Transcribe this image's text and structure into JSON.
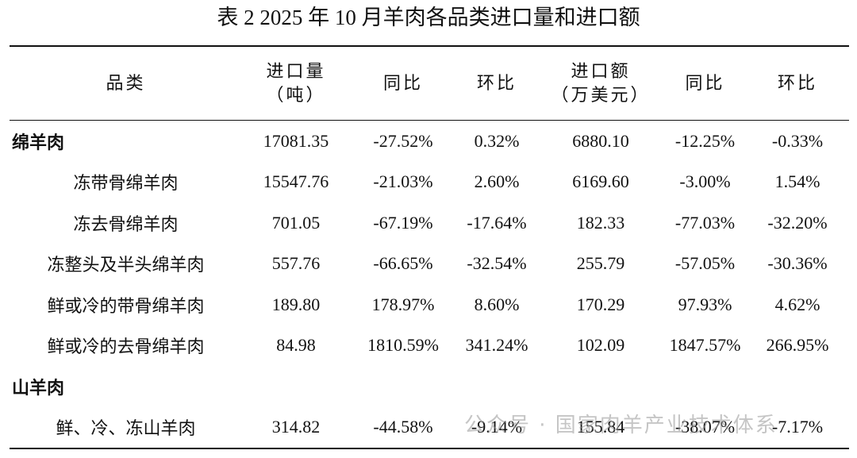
{
  "title": "表 2  2025 年 10 月羊肉各品类进口量和进口额",
  "table": {
    "header": [
      [
        "品类"
      ],
      [
        "进口量",
        "（吨）"
      ],
      [
        "同比"
      ],
      [
        "环比"
      ],
      [
        "进口额",
        "（万美元）"
      ],
      [
        "同比"
      ],
      [
        "环比"
      ]
    ],
    "groups": [
      {
        "name": "绵羊肉",
        "values": [
          "17081.35",
          "-27.52%",
          "0.32%",
          "6880.10",
          "-12.25%",
          "-0.33%"
        ],
        "items": [
          {
            "name": "冻带骨绵羊肉",
            "values": [
              "15547.76",
              "-21.03%",
              "2.60%",
              "6169.60",
              "-3.00%",
              "1.54%"
            ]
          },
          {
            "name": "冻去骨绵羊肉",
            "values": [
              "701.05",
              "-67.19%",
              "-17.64%",
              "182.33",
              "-77.03%",
              "-32.20%"
            ]
          },
          {
            "name": "冻整头及半头绵羊肉",
            "values": [
              "557.76",
              "-66.65%",
              "-32.54%",
              "255.79",
              "-57.05%",
              "-30.36%"
            ]
          },
          {
            "name": "鲜或冷的带骨绵羊肉",
            "values": [
              "189.80",
              "178.97%",
              "8.60%",
              "170.29",
              "97.93%",
              "4.62%"
            ]
          },
          {
            "name": "鲜或冷的去骨绵羊肉",
            "values": [
              "84.98",
              "1810.59%",
              "341.24%",
              "102.09",
              "1847.57%",
              "266.95%"
            ]
          }
        ]
      },
      {
        "name": "山羊肉",
        "items": [
          {
            "name": "鲜、冷、冻山羊肉",
            "values": [
              "314.82",
              "-44.58%",
              "-9.14%",
              "155.84",
              "-38.07%",
              "-7.17%"
            ]
          }
        ]
      }
    ]
  },
  "watermark": "公众号 · 国家肉羊产业技术体系"
}
